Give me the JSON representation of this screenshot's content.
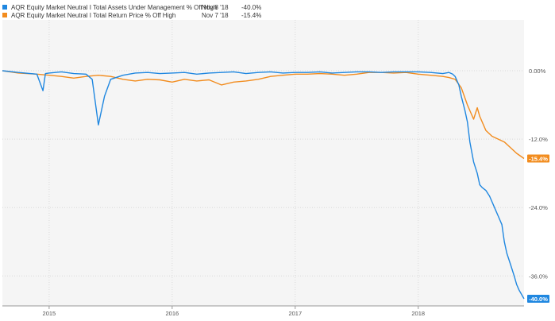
{
  "legend": [
    {
      "name": "AQR Equity Market Neutral I Total Assets Under Management % Off High",
      "date": "Nov 8 '18",
      "value": "-40.0%",
      "color": "#1f87e0"
    },
    {
      "name": "AQR Equity Market Neutral I Total Return Price % Off High",
      "date": "Nov 7 '18",
      "value": "-15.4%",
      "color": "#f28c1e"
    }
  ],
  "chart_data": {
    "type": "line",
    "title": "",
    "xlabel": "",
    "ylabel": "",
    "x_range": [
      2014.62,
      2018.86
    ],
    "ylim": [
      -40.0,
      0.0
    ],
    "y_ticks": [
      {
        "value": 0.0,
        "label": "0.00%"
      },
      {
        "value": -12.0,
        "label": "-12.0%"
      },
      {
        "value": -24.0,
        "label": "-24.0%"
      },
      {
        "value": -36.0,
        "label": "-36.0%"
      }
    ],
    "x_ticks": [
      {
        "value": 2015.0,
        "label": "2015"
      },
      {
        "value": 2016.0,
        "label": "2016"
      },
      {
        "value": 2017.0,
        "label": "2017"
      },
      {
        "value": 2018.0,
        "label": "2018"
      }
    ],
    "grid": true,
    "legend_position": "top-left",
    "series": [
      {
        "name": "AQR Equity Market Neutral I Total Assets Under Management % Off High",
        "color": "#1f87e0",
        "end_label": "-40.0%",
        "x": [
          2014.62,
          2014.75,
          2014.9,
          2014.95,
          2014.97,
          2015.0,
          2015.1,
          2015.2,
          2015.3,
          2015.35,
          2015.4,
          2015.45,
          2015.5,
          2015.6,
          2015.7,
          2015.8,
          2015.9,
          2016.0,
          2016.1,
          2016.2,
          2016.3,
          2016.4,
          2016.5,
          2016.6,
          2016.7,
          2016.8,
          2016.9,
          2017.0,
          2017.1,
          2017.2,
          2017.3,
          2017.4,
          2017.5,
          2017.6,
          2017.7,
          2017.8,
          2017.9,
          2018.0,
          2018.1,
          2018.2,
          2018.25,
          2018.28,
          2018.3,
          2018.33,
          2018.35,
          2018.38,
          2018.4,
          2018.42,
          2018.45,
          2018.48,
          2018.5,
          2018.52,
          2018.55,
          2018.58,
          2018.6,
          2018.62,
          2018.65,
          2018.68,
          2018.7,
          2018.72,
          2018.75,
          2018.78,
          2018.8,
          2018.82,
          2018.86
        ],
        "values": [
          0.0,
          -0.3,
          -0.6,
          -3.5,
          -0.5,
          -0.4,
          -0.2,
          -0.5,
          -0.6,
          -1.5,
          -9.5,
          -4.5,
          -1.5,
          -0.8,
          -0.4,
          -0.3,
          -0.5,
          -0.4,
          -0.3,
          -0.6,
          -0.4,
          -0.3,
          -0.2,
          -0.5,
          -0.3,
          -0.2,
          -0.4,
          -0.3,
          -0.3,
          -0.2,
          -0.4,
          -0.3,
          -0.2,
          -0.2,
          -0.3,
          -0.2,
          -0.2,
          -0.2,
          -0.3,
          -0.5,
          -0.3,
          -0.6,
          -1.0,
          -2.5,
          -4.5,
          -7.0,
          -9.0,
          -12.5,
          -16.0,
          -18.0,
          -20.0,
          -20.5,
          -21.0,
          -22.0,
          -23.0,
          -24.0,
          -25.5,
          -27.0,
          -30.0,
          -32.0,
          -34.0,
          -36.0,
          -37.5,
          -38.5,
          -40.0
        ]
      },
      {
        "name": "AQR Equity Market Neutral I Total Return Price % Off High",
        "color": "#f28c1e",
        "end_label": "-15.4%",
        "x": [
          2014.62,
          2014.75,
          2014.9,
          2015.0,
          2015.1,
          2015.2,
          2015.3,
          2015.4,
          2015.5,
          2015.6,
          2015.7,
          2015.8,
          2015.9,
          2016.0,
          2016.1,
          2016.2,
          2016.3,
          2016.4,
          2016.5,
          2016.6,
          2016.7,
          2016.8,
          2016.9,
          2017.0,
          2017.1,
          2017.2,
          2017.3,
          2017.4,
          2017.5,
          2017.6,
          2017.7,
          2017.8,
          2017.9,
          2018.0,
          2018.1,
          2018.2,
          2018.25,
          2018.3,
          2018.35,
          2018.4,
          2018.45,
          2018.48,
          2018.5,
          2018.55,
          2018.6,
          2018.65,
          2018.7,
          2018.75,
          2018.8,
          2018.86
        ],
        "values": [
          0.0,
          -0.4,
          -0.6,
          -0.8,
          -1.0,
          -1.3,
          -1.0,
          -0.8,
          -1.0,
          -1.5,
          -1.8,
          -1.5,
          -1.6,
          -2.0,
          -1.5,
          -1.8,
          -1.6,
          -2.5,
          -2.0,
          -1.8,
          -1.5,
          -1.0,
          -0.8,
          -0.6,
          -0.6,
          -0.5,
          -0.6,
          -0.8,
          -0.6,
          -0.3,
          -0.3,
          -0.4,
          -0.3,
          -0.6,
          -0.8,
          -1.0,
          -1.2,
          -1.5,
          -3.0,
          -6.0,
          -8.5,
          -6.5,
          -8.0,
          -10.5,
          -11.5,
          -12.0,
          -12.5,
          -13.5,
          -14.5,
          -15.4
        ]
      }
    ]
  }
}
